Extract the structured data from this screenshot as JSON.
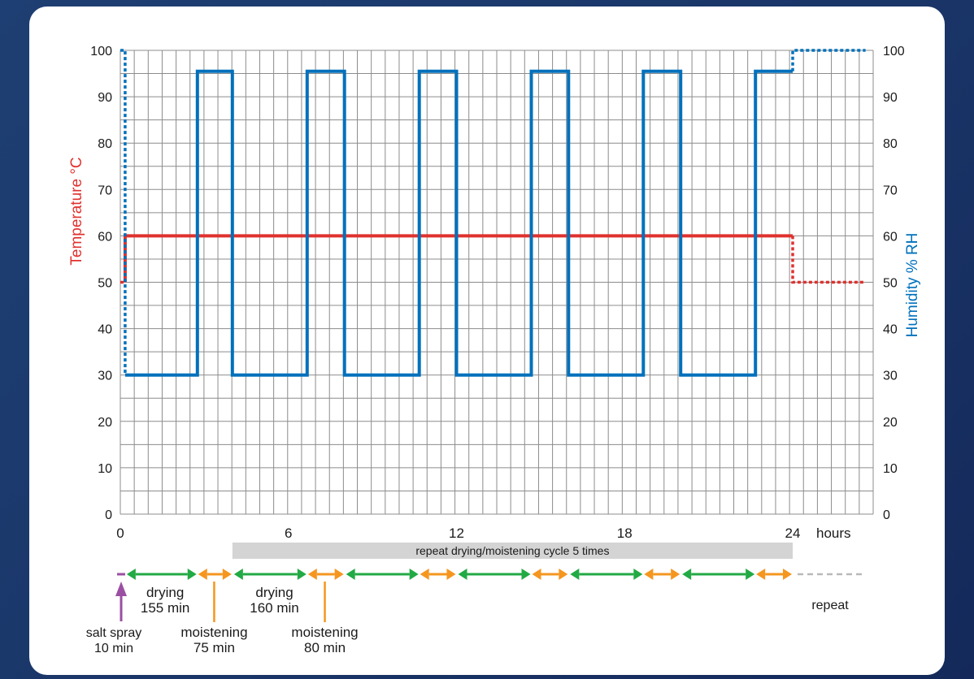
{
  "chart_data": {
    "type": "line",
    "title": "",
    "xlabel": "",
    "x_unit_label": "hours",
    "y_left_label": "Temperature °C",
    "y_right_label": "Humidity % RH",
    "xlim": [
      0,
      24
    ],
    "ylim": [
      0,
      100
    ],
    "x_ticks": [
      0,
      6,
      12,
      18,
      24
    ],
    "y_ticks": [
      0,
      10,
      20,
      30,
      40,
      50,
      60,
      70,
      80,
      90,
      100
    ],
    "grid": true,
    "colors": {
      "temperature": "#e0312e",
      "humidity": "#0071bc",
      "drying": "#22aa44",
      "moistening": "#f5961f",
      "salt_spray": "#9b4fa3",
      "band": "#d4d4d4"
    },
    "series": [
      {
        "key": "temperature",
        "solid": [
          [
            0.17,
            50
          ],
          [
            0.17,
            60
          ],
          [
            24,
            60
          ]
        ],
        "dotted": [
          [
            0,
            50
          ],
          [
            0.17,
            50
          ]
        ],
        "dotted_after": [
          [
            24,
            60
          ],
          [
            24,
            50
          ],
          [
            26.6,
            50
          ]
        ]
      },
      {
        "key": "humidity",
        "dotted_before": [
          [
            0,
            100
          ],
          [
            0.17,
            100
          ],
          [
            0.17,
            30
          ]
        ],
        "solid": [
          [
            0.17,
            30
          ],
          [
            2.75,
            30
          ],
          [
            2.75,
            95.5
          ],
          [
            4.0,
            95.5
          ],
          [
            4.0,
            30
          ],
          [
            6.67,
            30
          ],
          [
            6.67,
            95.5
          ],
          [
            8.0,
            95.5
          ],
          [
            8.0,
            30
          ],
          [
            10.67,
            30
          ],
          [
            10.67,
            95.5
          ],
          [
            12.0,
            95.5
          ],
          [
            12.0,
            30
          ],
          [
            14.67,
            30
          ],
          [
            14.67,
            95.5
          ],
          [
            16.0,
            95.5
          ],
          [
            16.0,
            30
          ],
          [
            18.67,
            30
          ],
          [
            18.67,
            95.5
          ],
          [
            20.0,
            95.5
          ],
          [
            20.0,
            30
          ],
          [
            22.67,
            30
          ],
          [
            22.67,
            95.5
          ],
          [
            24,
            95.5
          ]
        ],
        "dotted_after": [
          [
            24,
            95.5
          ],
          [
            24,
            100
          ],
          [
            26.6,
            100
          ]
        ]
      }
    ],
    "repeat_band": {
      "from": 4.0,
      "to": 24,
      "label": "repeat drying/moistening cycle 5 times"
    },
    "timeline": {
      "salt_spray": {
        "at": 0,
        "label1": "salt spray",
        "label2": "10 min"
      },
      "drying": [
        [
          0.17,
          2.75
        ],
        [
          4.0,
          6.67
        ],
        [
          8.0,
          10.67
        ],
        [
          12.0,
          14.67
        ],
        [
          16.0,
          18.67
        ],
        [
          20.0,
          22.67
        ]
      ],
      "moistening": [
        [
          2.75,
          4.0
        ],
        [
          6.67,
          8.0
        ],
        [
          10.67,
          12.0
        ],
        [
          14.67,
          16.0
        ],
        [
          18.67,
          20.0
        ],
        [
          22.67,
          24
        ]
      ],
      "continue_to": 26.6,
      "annotations": [
        {
          "kind": "drying",
          "x": 1.6,
          "label1": "drying",
          "label2": "155 min"
        },
        {
          "kind": "moistening",
          "x": 3.35,
          "label1": "moistening",
          "label2": "75 min"
        },
        {
          "kind": "drying",
          "x": 5.5,
          "label1": "drying",
          "label2": "160 min"
        },
        {
          "kind": "moistening",
          "x": 7.3,
          "label1": "moistening",
          "label2": "80 min"
        }
      ],
      "repeat_label": "repeat"
    }
  }
}
